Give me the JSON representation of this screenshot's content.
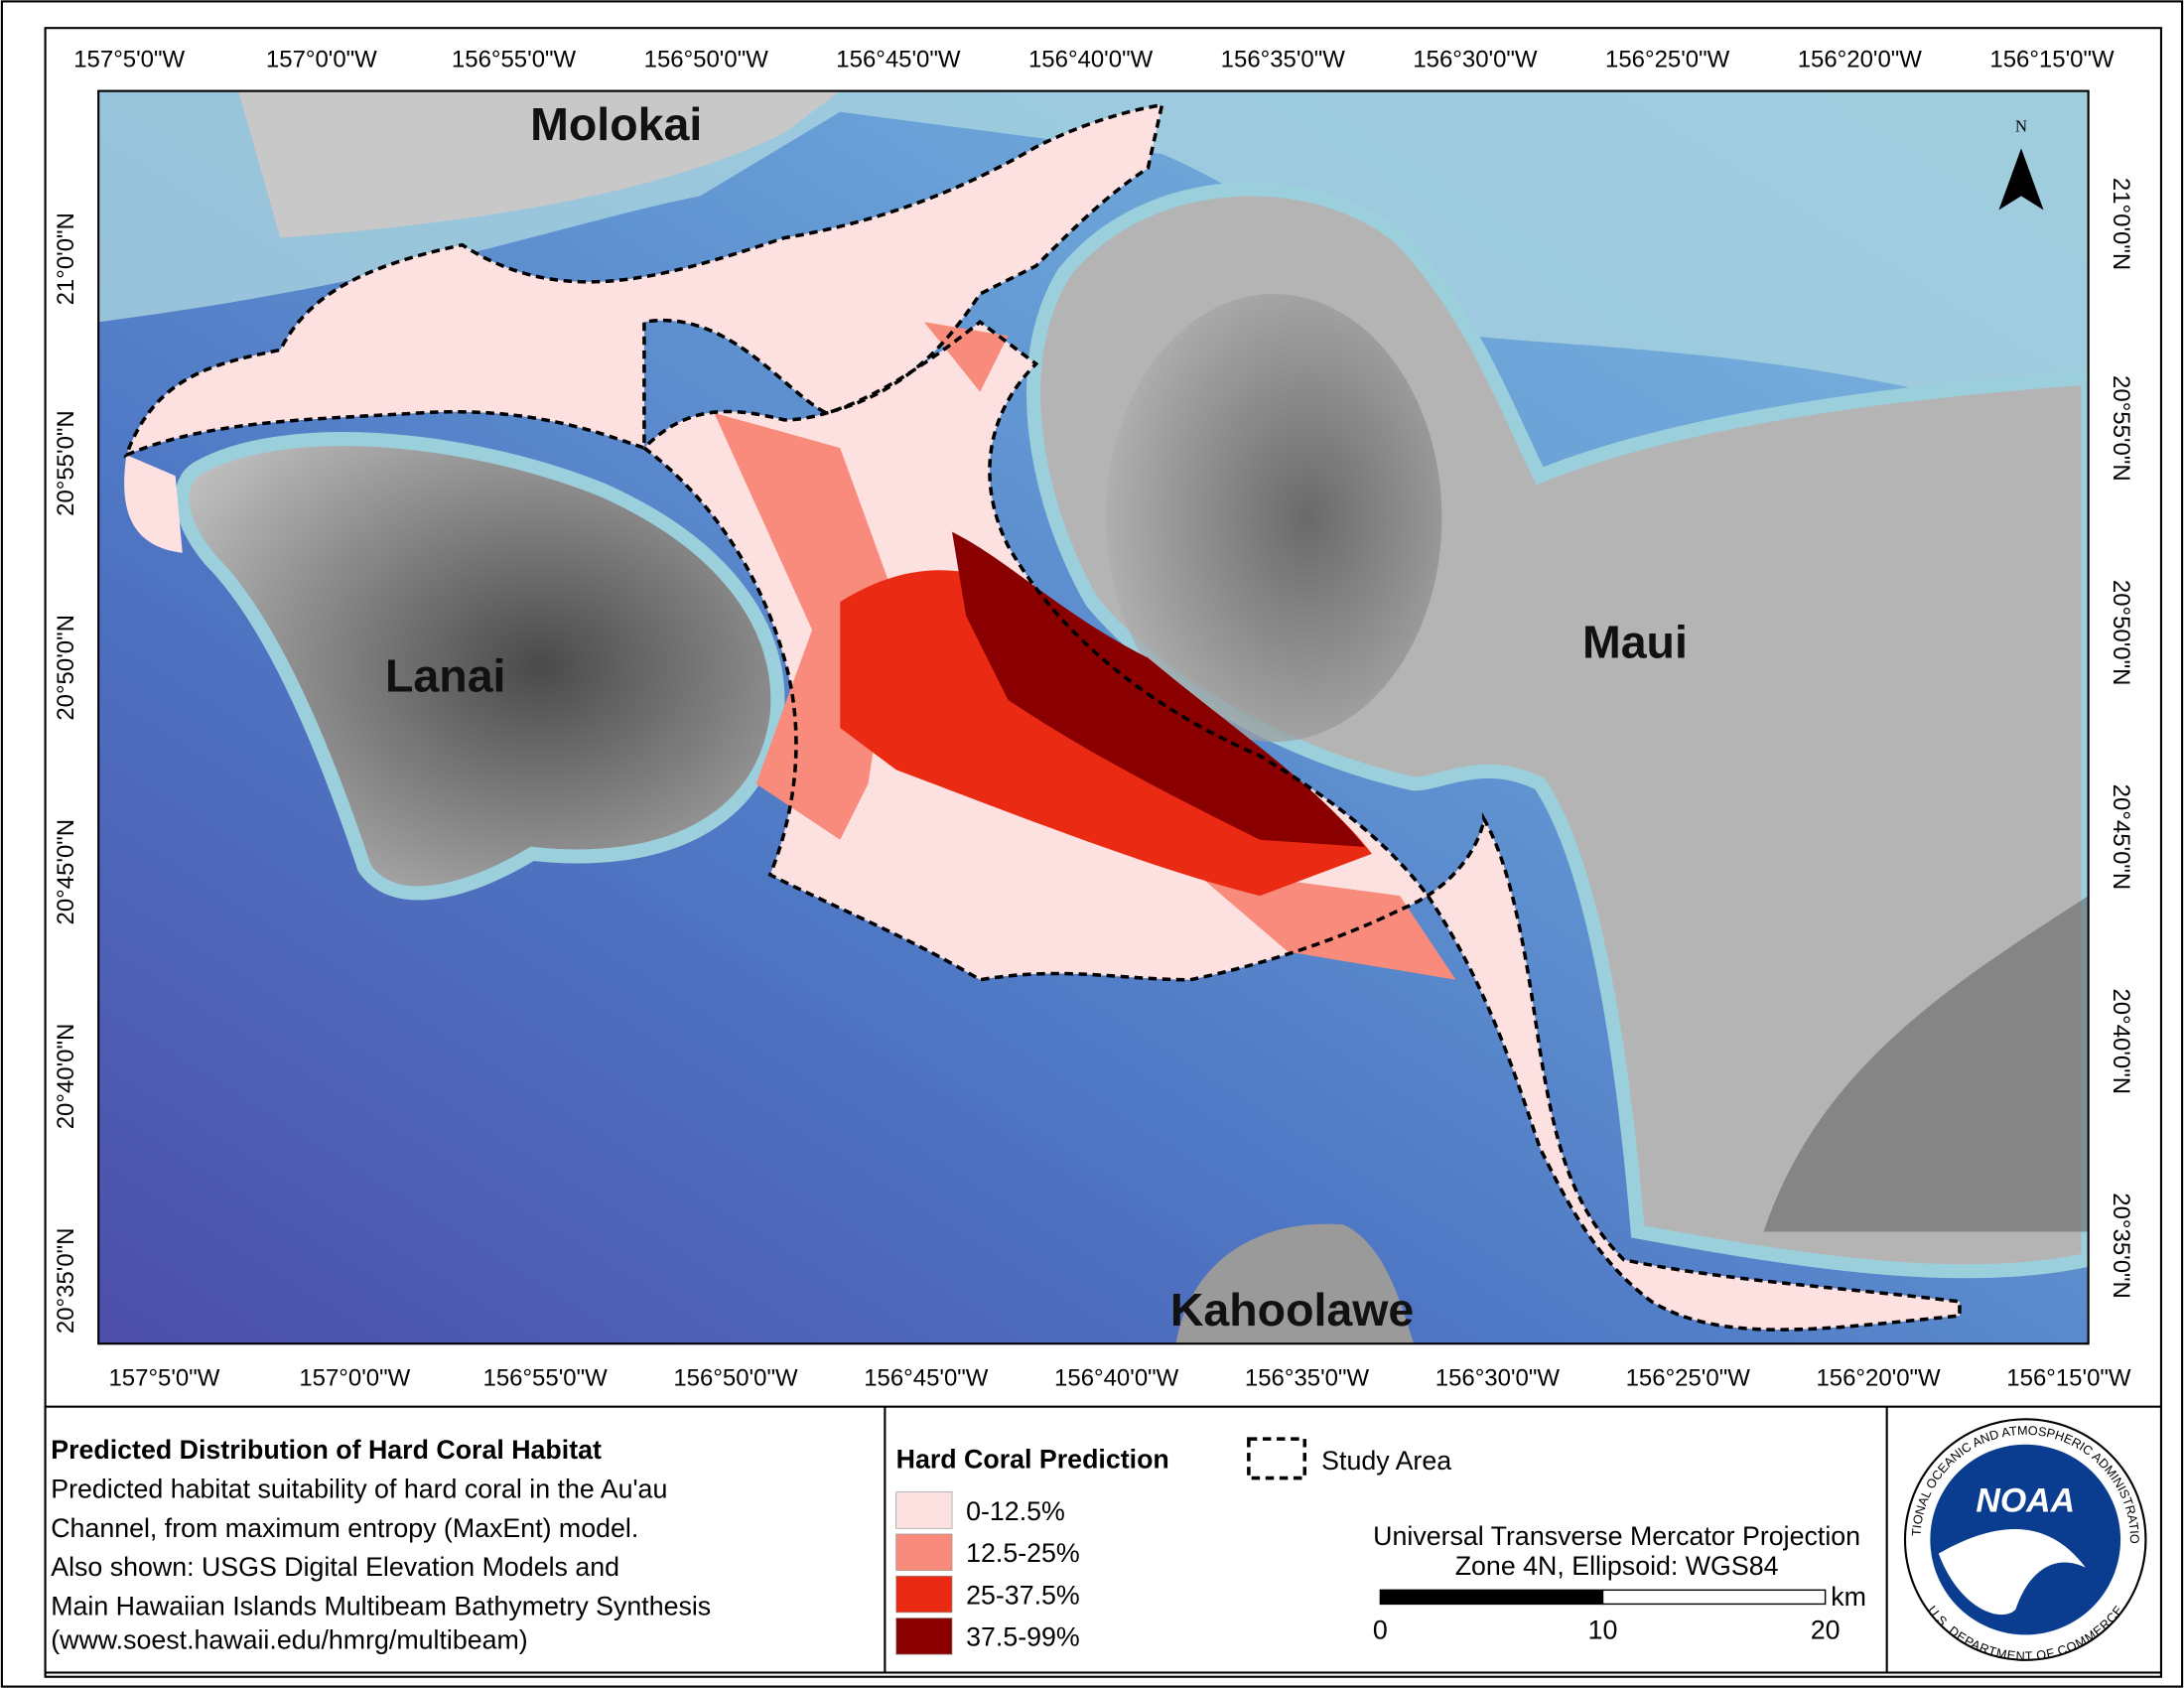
{
  "map": {
    "top_ticks": [
      "157°5'0\"W",
      "157°0'0\"W",
      "156°55'0\"W",
      "156°50'0\"W",
      "156°45'0\"W",
      "156°40'0\"W",
      "156°35'0\"W",
      "156°30'0\"W",
      "156°25'0\"W",
      "156°20'0\"W",
      "156°15'0\"W"
    ],
    "bottom_ticks": [
      "157°5'0\"W",
      "157°0'0\"W",
      "156°55'0\"W",
      "156°50'0\"W",
      "156°45'0\"W",
      "156°40'0\"W",
      "156°35'0\"W",
      "156°30'0\"W",
      "156°25'0\"W",
      "156°20'0\"W",
      "156°15'0\"W"
    ],
    "left_ticks": [
      "21°0'0\"N",
      "20°55'0\"N",
      "20°50'0\"N",
      "20°45'0\"N",
      "20°40'0\"N",
      "20°35'0\"N"
    ],
    "right_ticks": [
      "21°0'0\"N",
      "20°55'0\"N",
      "20°50'0\"N",
      "20°45'0\"N",
      "20°40'0\"N",
      "20°35'0\"N"
    ],
    "labels": {
      "molokai": "Molokai",
      "lanai": "Lanai",
      "maui": "Maui",
      "kahoolawe": "Kahoolawe"
    },
    "north": "N"
  },
  "footer": {
    "title": "Predicted Distribution of Hard Coral Habitat",
    "description": [
      "Predicted habitat suitability of hard coral in the Au'au",
      "Channel, from maximum entropy (MaxEnt) model.",
      "Also shown: USGS Digital Elevation Models and",
      "Main Hawaiian Islands Multibeam Bathymetry Synthesis"
    ],
    "source": "(www.soest.hawaii.edu/hmrg/multibeam)",
    "legend": {
      "title": "Hard Coral Prediction",
      "study_area": "Study Area",
      "classes": [
        {
          "label": "0-12.5%",
          "color": "#fde0e0"
        },
        {
          "label": "12.5-25%",
          "color": "#f98b7c"
        },
        {
          "label": "25-37.5%",
          "color": "#ea2a12"
        },
        {
          "label": "37.5-99%",
          "color": "#8a0000"
        }
      ]
    },
    "projection": [
      "Universal Transverse Mercator Projection",
      "Zone 4N, Ellipsoid: WGS84"
    ],
    "scale": {
      "ticks": [
        "0",
        "10",
        "20"
      ],
      "unit": "km"
    },
    "logo": {
      "text": "NOAA",
      "ring_top": "NATIONAL OCEANIC AND ATMOSPHERIC ADMINISTRATION",
      "ring_bottom": "U.S. DEPARTMENT OF COMMERCE"
    }
  }
}
